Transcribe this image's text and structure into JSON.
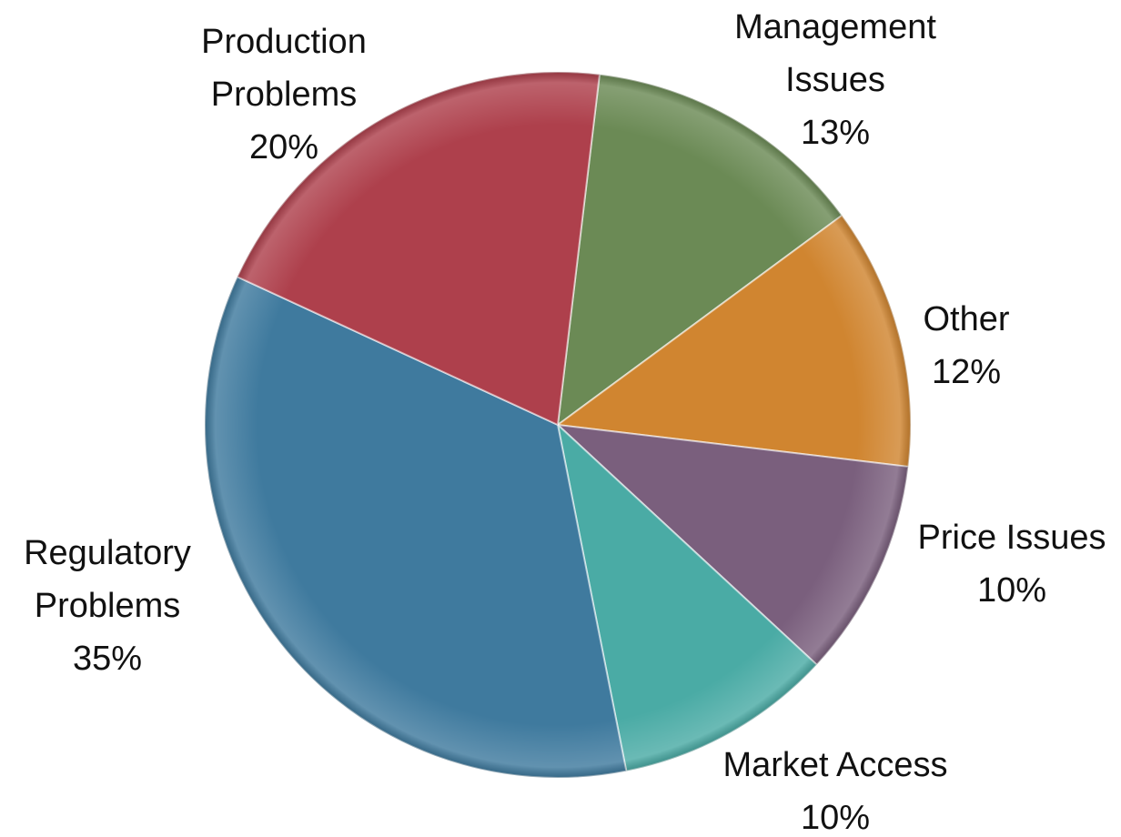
{
  "chart_data": {
    "type": "pie",
    "categories": [
      "Management Issues",
      "Other",
      "Price Issues",
      "Market Access",
      "Regulatory Problems",
      "Production Problems"
    ],
    "values": [
      13,
      12,
      10,
      10,
      35,
      20
    ],
    "value_labels": [
      "13%",
      "12%",
      "10%",
      "10%",
      "35%",
      "20%"
    ],
    "colors": [
      "#6b8a55",
      "#d08530",
      "#7a5f7d",
      "#4aaba5",
      "#3f7a9e",
      "#ae404c"
    ]
  }
}
